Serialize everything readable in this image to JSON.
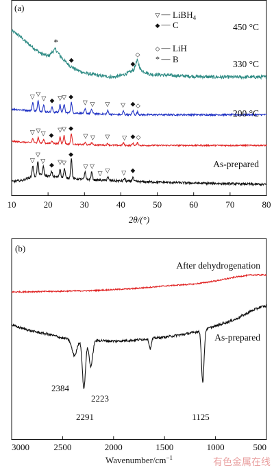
{
  "chart_data": [
    {
      "panel_label": "(a)",
      "type": "line",
      "xlabel_main": "2θ/(°)",
      "xlabel": "2θ/(°)",
      "xlim": [
        10,
        80
      ],
      "x_ticks": [
        10,
        20,
        30,
        40,
        50,
        60,
        70,
        80
      ],
      "ylabel": "",
      "legend": {
        "placement": "top-right",
        "entries": [
          {
            "symbol": "▽",
            "sep": "—",
            "label": "LiBH",
            "sub": "4"
          },
          {
            "symbol": "◆",
            "sep": "—",
            "label": "C",
            "sub": ""
          },
          {
            "symbol": "◇",
            "sep": "—",
            "label": "LiH",
            "sub": ""
          },
          {
            "symbol": "*",
            "sep": "—",
            "label": "B",
            "sub": ""
          }
        ]
      },
      "series": [
        {
          "name": "450 °C",
          "color": "#2e8b84",
          "baseline": 0.85,
          "noise": 0.012,
          "points": [
            [
              10,
              1.18
            ],
            [
              12,
              1.15
            ],
            [
              14,
              1.1
            ],
            [
              16,
              1.06
            ],
            [
              18,
              1.02
            ],
            [
              20,
              1.0
            ],
            [
              22,
              1.05
            ],
            [
              24,
              0.98
            ],
            [
              26,
              0.93
            ],
            [
              28,
              0.9
            ],
            [
              30,
              0.88
            ],
            [
              34,
              0.86
            ],
            [
              38,
              0.85
            ],
            [
              40,
              0.86
            ],
            [
              42,
              0.88
            ],
            [
              43.5,
              0.9
            ],
            [
              44.5,
              0.97
            ],
            [
              45.5,
              0.9
            ],
            [
              48,
              0.87
            ],
            [
              55,
              0.86
            ],
            [
              65,
              0.85
            ],
            [
              80,
              0.85
            ]
          ],
          "peaks": [],
          "markers": [
            {
              "x": 22.2,
              "s": "*"
            },
            {
              "x": 26.4,
              "s": "◆"
            },
            {
              "x": 43.3,
              "s": "◆"
            },
            {
              "x": 44.6,
              "s": "◇"
            }
          ]
        },
        {
          "name": "330 °C",
          "color": "#1f31c4",
          "baseline": 0.58,
          "noise": 0.006,
          "points": [
            [
              10,
              0.62
            ],
            [
              15,
              0.61
            ],
            [
              20,
              0.6
            ],
            [
              30,
              0.59
            ],
            [
              40,
              0.58
            ],
            [
              50,
              0.58
            ],
            [
              60,
              0.58
            ],
            [
              70,
              0.58
            ],
            [
              80,
              0.58
            ]
          ],
          "peaks": [
            [
              15.8,
              0.06
            ],
            [
              17.3,
              0.075
            ],
            [
              18.8,
              0.045
            ],
            [
              21.1,
              0.035
            ],
            [
              23.3,
              0.055
            ],
            [
              24.4,
              0.06
            ],
            [
              26.4,
              0.075
            ],
            [
              30.2,
              0.03
            ],
            [
              32.0,
              0.03
            ],
            [
              36.4,
              0.025
            ],
            [
              40.7,
              0.025
            ],
            [
              43.3,
              0.03
            ],
            [
              44.6,
              0.02
            ]
          ],
          "markers": [
            {
              "x": 15.7,
              "s": "▽"
            },
            {
              "x": 17.3,
              "s": "▽"
            },
            {
              "x": 18.8,
              "s": "▽"
            },
            {
              "x": 21.1,
              "s": "◆"
            },
            {
              "x": 23.3,
              "s": "▽"
            },
            {
              "x": 24.4,
              "s": "▽"
            },
            {
              "x": 26.3,
              "s": "◆"
            },
            {
              "x": 30.2,
              "s": "▽"
            },
            {
              "x": 32.2,
              "s": "▽"
            },
            {
              "x": 36.3,
              "s": "▽"
            },
            {
              "x": 40.6,
              "s": "▽"
            },
            {
              "x": 43.3,
              "s": "◆"
            },
            {
              "x": 44.7,
              "s": "◇"
            }
          ]
        },
        {
          "name": "200 °C",
          "color": "#e02424",
          "baseline": 0.36,
          "noise": 0.005,
          "points": [
            [
              10,
              0.39
            ],
            [
              15,
              0.38
            ],
            [
              20,
              0.375
            ],
            [
              30,
              0.365
            ],
            [
              40,
              0.36
            ],
            [
              50,
              0.36
            ],
            [
              60,
              0.36
            ],
            [
              70,
              0.36
            ],
            [
              80,
              0.36
            ]
          ],
          "peaks": [
            [
              15.8,
              0.03
            ],
            [
              17.3,
              0.04
            ],
            [
              18.8,
              0.025
            ],
            [
              21.1,
              0.02
            ],
            [
              23.3,
              0.05
            ],
            [
              24.4,
              0.06
            ],
            [
              26.4,
              0.075
            ],
            [
              30.2,
              0.015
            ],
            [
              32.0,
              0.015
            ],
            [
              36.4,
              0.012
            ],
            [
              40.7,
              0.018
            ],
            [
              43.3,
              0.015
            ],
            [
              44.6,
              0.02
            ]
          ],
          "markers": [
            {
              "x": 15.7,
              "s": "▽"
            },
            {
              "x": 17.3,
              "s": "▽"
            },
            {
              "x": 18.7,
              "s": "▽"
            },
            {
              "x": 20.9,
              "s": "◆"
            },
            {
              "x": 23.3,
              "s": "▽"
            },
            {
              "x": 24.4,
              "s": "▽"
            },
            {
              "x": 26.3,
              "s": "◆"
            },
            {
              "x": 30.3,
              "s": "▽"
            },
            {
              "x": 32.3,
              "s": "▽"
            },
            {
              "x": 36.3,
              "s": "▽"
            },
            {
              "x": 41.0,
              "s": "▽"
            },
            {
              "x": 43.3,
              "s": "◆"
            },
            {
              "x": 44.8,
              "s": "◇"
            }
          ]
        },
        {
          "name": "As-prepared",
          "color": "#111111",
          "baseline": 0.1,
          "noise": 0.008,
          "points": [
            [
              10,
              0.1
            ],
            [
              13,
              0.11
            ],
            [
              15,
              0.13
            ],
            [
              18,
              0.15
            ],
            [
              20,
              0.14
            ],
            [
              24,
              0.13
            ],
            [
              28,
              0.12
            ],
            [
              35,
              0.11
            ],
            [
              45,
              0.1
            ],
            [
              60,
              0.09
            ],
            [
              80,
              0.08
            ]
          ],
          "peaks": [
            [
              15.8,
              0.08
            ],
            [
              17.2,
              0.1
            ],
            [
              18.7,
              0.06
            ],
            [
              21.0,
              0.035
            ],
            [
              23.3,
              0.06
            ],
            [
              24.5,
              0.065
            ],
            [
              26.4,
              0.14
            ],
            [
              30.2,
              0.05
            ],
            [
              32.0,
              0.055
            ],
            [
              36.4,
              0.025
            ],
            [
              41.0,
              0.02
            ],
            [
              43.3,
              0.03
            ]
          ],
          "markers": [
            {
              "x": 15.7,
              "s": "▽"
            },
            {
              "x": 17.2,
              "s": "▽"
            },
            {
              "x": 18.6,
              "s": "▽"
            },
            {
              "x": 21.0,
              "s": "◆"
            },
            {
              "x": 23.3,
              "s": "▽"
            },
            {
              "x": 24.4,
              "s": "▽"
            },
            {
              "x": 26.3,
              "s": "◆"
            },
            {
              "x": 30.3,
              "s": "▽"
            },
            {
              "x": 32.1,
              "s": "▽"
            },
            {
              "x": 34.3,
              "s": "▽"
            },
            {
              "x": 36.3,
              "s": "▽"
            },
            {
              "x": 40.8,
              "s": "▽"
            },
            {
              "x": 43.3,
              "s": "◆"
            }
          ]
        }
      ]
    },
    {
      "panel_label": "(b)",
      "type": "line",
      "xlabel_main": "Wavenumber/cm",
      "xlabel_sup": "−1",
      "xlabel": "Wavenumber/cm−1",
      "xlim": [
        3000,
        500
      ],
      "x_ticks": [
        3000,
        2500,
        2000,
        1500,
        1000,
        500
      ],
      "ylabel": "",
      "series": [
        {
          "name": "After dehydrogenation",
          "color": "#e02424",
          "noise": 0.003,
          "points": [
            [
              3000,
              0.735
            ],
            [
              2600,
              0.738
            ],
            [
              2200,
              0.742
            ],
            [
              1800,
              0.752
            ],
            [
              1500,
              0.765
            ],
            [
              1200,
              0.775
            ],
            [
              1000,
              0.79
            ],
            [
              800,
              0.81
            ],
            [
              650,
              0.82
            ],
            [
              500,
              0.82
            ]
          ],
          "dips": []
        },
        {
          "name": "As-prepared",
          "color": "#111111",
          "noise": 0.006,
          "points": [
            [
              3000,
              0.57
            ],
            [
              2800,
              0.54
            ],
            [
              2600,
              0.52
            ],
            [
              2500,
              0.505
            ],
            [
              2420,
              0.5
            ],
            [
              2000,
              0.49
            ],
            [
              1800,
              0.495
            ],
            [
              1500,
              0.51
            ],
            [
              1300,
              0.525
            ],
            [
              1200,
              0.535
            ],
            [
              1000,
              0.565
            ],
            [
              800,
              0.6
            ],
            [
              650,
              0.64
            ],
            [
              560,
              0.66
            ],
            [
              500,
              0.665
            ]
          ],
          "dips": [
            [
              2384,
              0.08,
              35
            ],
            [
              2291,
              0.24,
              22
            ],
            [
              2223,
              0.13,
              25
            ],
            [
              1640,
              0.05,
              15
            ],
            [
              1125,
              0.26,
              18
            ]
          ]
        }
      ],
      "peak_labels": [
        "2384",
        "2291",
        "2223",
        "1125"
      ]
    }
  ],
  "watermark": "有色金属在线"
}
